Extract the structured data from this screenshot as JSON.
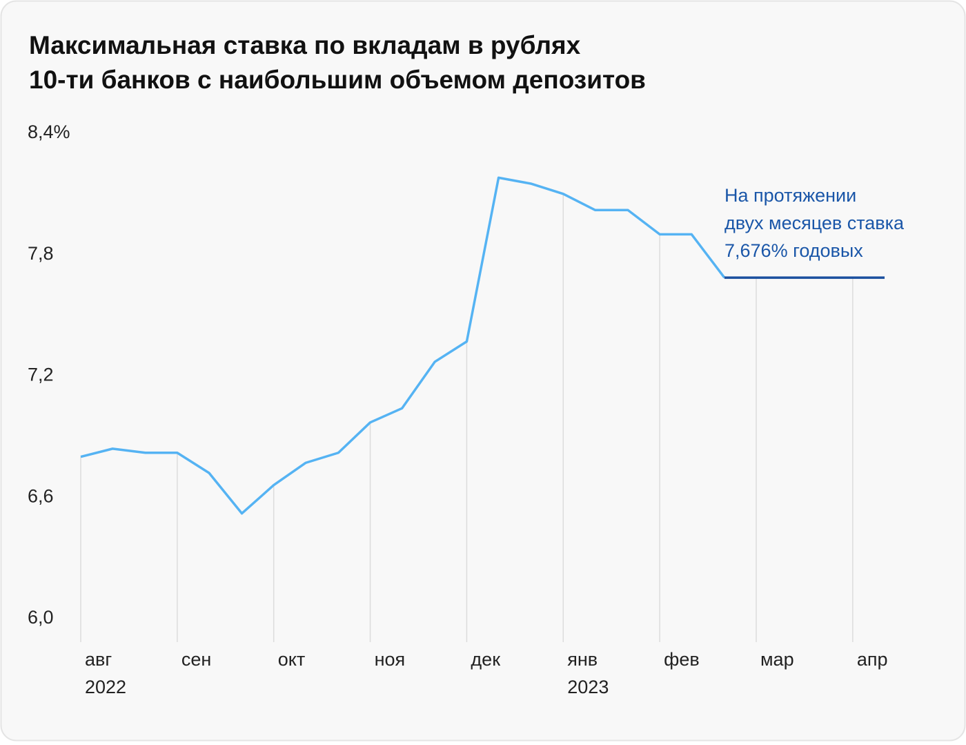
{
  "chart_data": {
    "type": "line",
    "title": [
      "Максимальная ставка по вкладам в рублях",
      "10-ти банков с наибольшим объемом депозитов"
    ],
    "x": [
      0,
      0.33,
      0.67,
      1,
      1.33,
      1.67,
      2,
      2.33,
      2.67,
      3,
      3.33,
      3.67,
      4,
      4.33,
      4.67,
      5,
      5.33,
      5.67,
      6,
      6.33,
      6.67,
      7,
      7.33,
      7.67,
      8,
      8.33
    ],
    "series": [
      {
        "color": "#55b3f3",
        "values": [
          6.79,
          6.83,
          6.81,
          6.81,
          6.71,
          6.51,
          6.65,
          6.76,
          6.81,
          6.96,
          7.03,
          7.26,
          7.36,
          8.17,
          8.14,
          8.09,
          8.01,
          8.01,
          7.89,
          7.89,
          7.676,
          null,
          null,
          null,
          null,
          null
        ]
      },
      {
        "color": "#1a4f9e",
        "values": [
          null,
          null,
          null,
          null,
          null,
          null,
          null,
          null,
          null,
          null,
          null,
          null,
          null,
          null,
          null,
          null,
          null,
          null,
          null,
          null,
          7.676,
          7.676,
          7.676,
          7.676,
          7.676,
          7.676
        ]
      }
    ],
    "xlim": [
      0,
      8.33
    ],
    "xticks": [
      {
        "value": 0,
        "label": "авг"
      },
      {
        "value": 1,
        "label": "сен"
      },
      {
        "value": 2,
        "label": "окт"
      },
      {
        "value": 3,
        "label": "ноя"
      },
      {
        "value": 4,
        "label": "дек"
      },
      {
        "value": 5,
        "label": "янв"
      },
      {
        "value": 6,
        "label": "фев"
      },
      {
        "value": 7,
        "label": "мар"
      },
      {
        "value": 8,
        "label": "апр"
      }
    ],
    "year_labels": [
      {
        "value": 0,
        "label": "2022"
      },
      {
        "value": 5,
        "label": "2023"
      }
    ],
    "ylim": [
      6.0,
      8.4
    ],
    "yticks": [
      {
        "value": 8.4,
        "label": "8,4%"
      },
      {
        "value": 7.8,
        "label": "7,8"
      },
      {
        "value": 7.2,
        "label": "7,2"
      },
      {
        "value": 6.6,
        "label": "6,6"
      },
      {
        "value": 6.0,
        "label": "6,0"
      }
    ],
    "grid": true,
    "annotation": {
      "color": "#1a56a8",
      "lines": [
        "На протяжении",
        "двух месяцев ставка",
        "7,676% годовых"
      ]
    }
  }
}
